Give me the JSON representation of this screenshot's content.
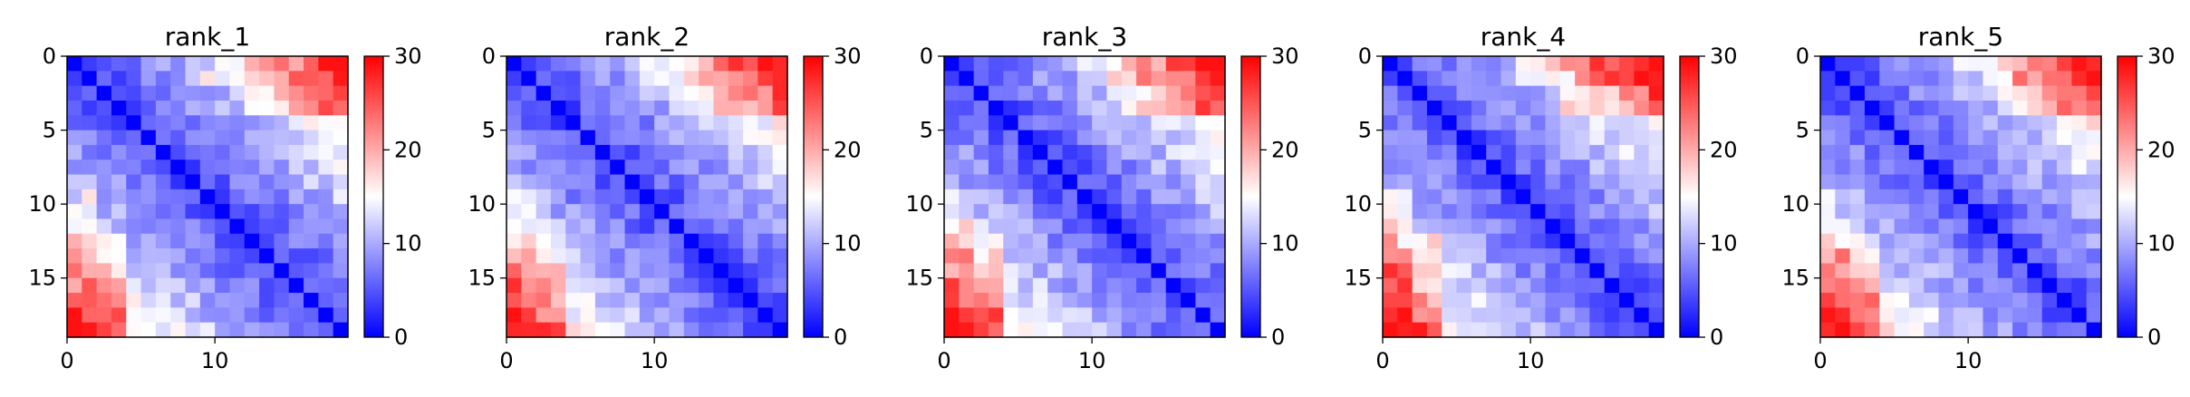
{
  "chart_data": [
    {
      "type": "heatmap",
      "title": "rank_1",
      "size": 19,
      "xticks": [
        0,
        10
      ],
      "yticks": [
        0,
        5,
        10,
        15
      ],
      "seed": 11,
      "colorbar": {
        "min": 0,
        "max": 30,
        "ticks": [
          0,
          10,
          20,
          30
        ],
        "cmap": "bwr"
      },
      "xlabel": "",
      "ylabel": ""
    },
    {
      "type": "heatmap",
      "title": "rank_2",
      "size": 19,
      "xticks": [
        0,
        10
      ],
      "yticks": [
        0,
        5,
        10,
        15
      ],
      "seed": 23,
      "colorbar": {
        "min": 0,
        "max": 30,
        "ticks": [
          0,
          10,
          20,
          30
        ],
        "cmap": "bwr"
      },
      "xlabel": "",
      "ylabel": ""
    },
    {
      "type": "heatmap",
      "title": "rank_3",
      "size": 19,
      "xticks": [
        0,
        10
      ],
      "yticks": [
        0,
        5,
        10,
        15
      ],
      "seed": 37,
      "colorbar": {
        "min": 0,
        "max": 30,
        "ticks": [
          0,
          10,
          20,
          30
        ],
        "cmap": "bwr"
      },
      "xlabel": "",
      "ylabel": ""
    },
    {
      "type": "heatmap",
      "title": "rank_4",
      "size": 19,
      "xticks": [
        0,
        10
      ],
      "yticks": [
        0,
        5,
        10,
        15
      ],
      "seed": 41,
      "colorbar": {
        "min": 0,
        "max": 30,
        "ticks": [
          0,
          10,
          20,
          30
        ],
        "cmap": "bwr"
      },
      "xlabel": "",
      "ylabel": ""
    },
    {
      "type": "heatmap",
      "title": "rank_5",
      "size": 19,
      "xticks": [
        0,
        10
      ],
      "yticks": [
        0,
        5,
        10,
        15
      ],
      "seed": 53,
      "colorbar": {
        "min": 0,
        "max": 30,
        "ticks": [
          0,
          10,
          20,
          30
        ],
        "cmap": "bwr"
      },
      "xlabel": "",
      "ylabel": ""
    }
  ],
  "colors": {
    "low": "#0000ff",
    "mid": "#ffffff",
    "high": "#ff0000",
    "axis": "#000000"
  }
}
